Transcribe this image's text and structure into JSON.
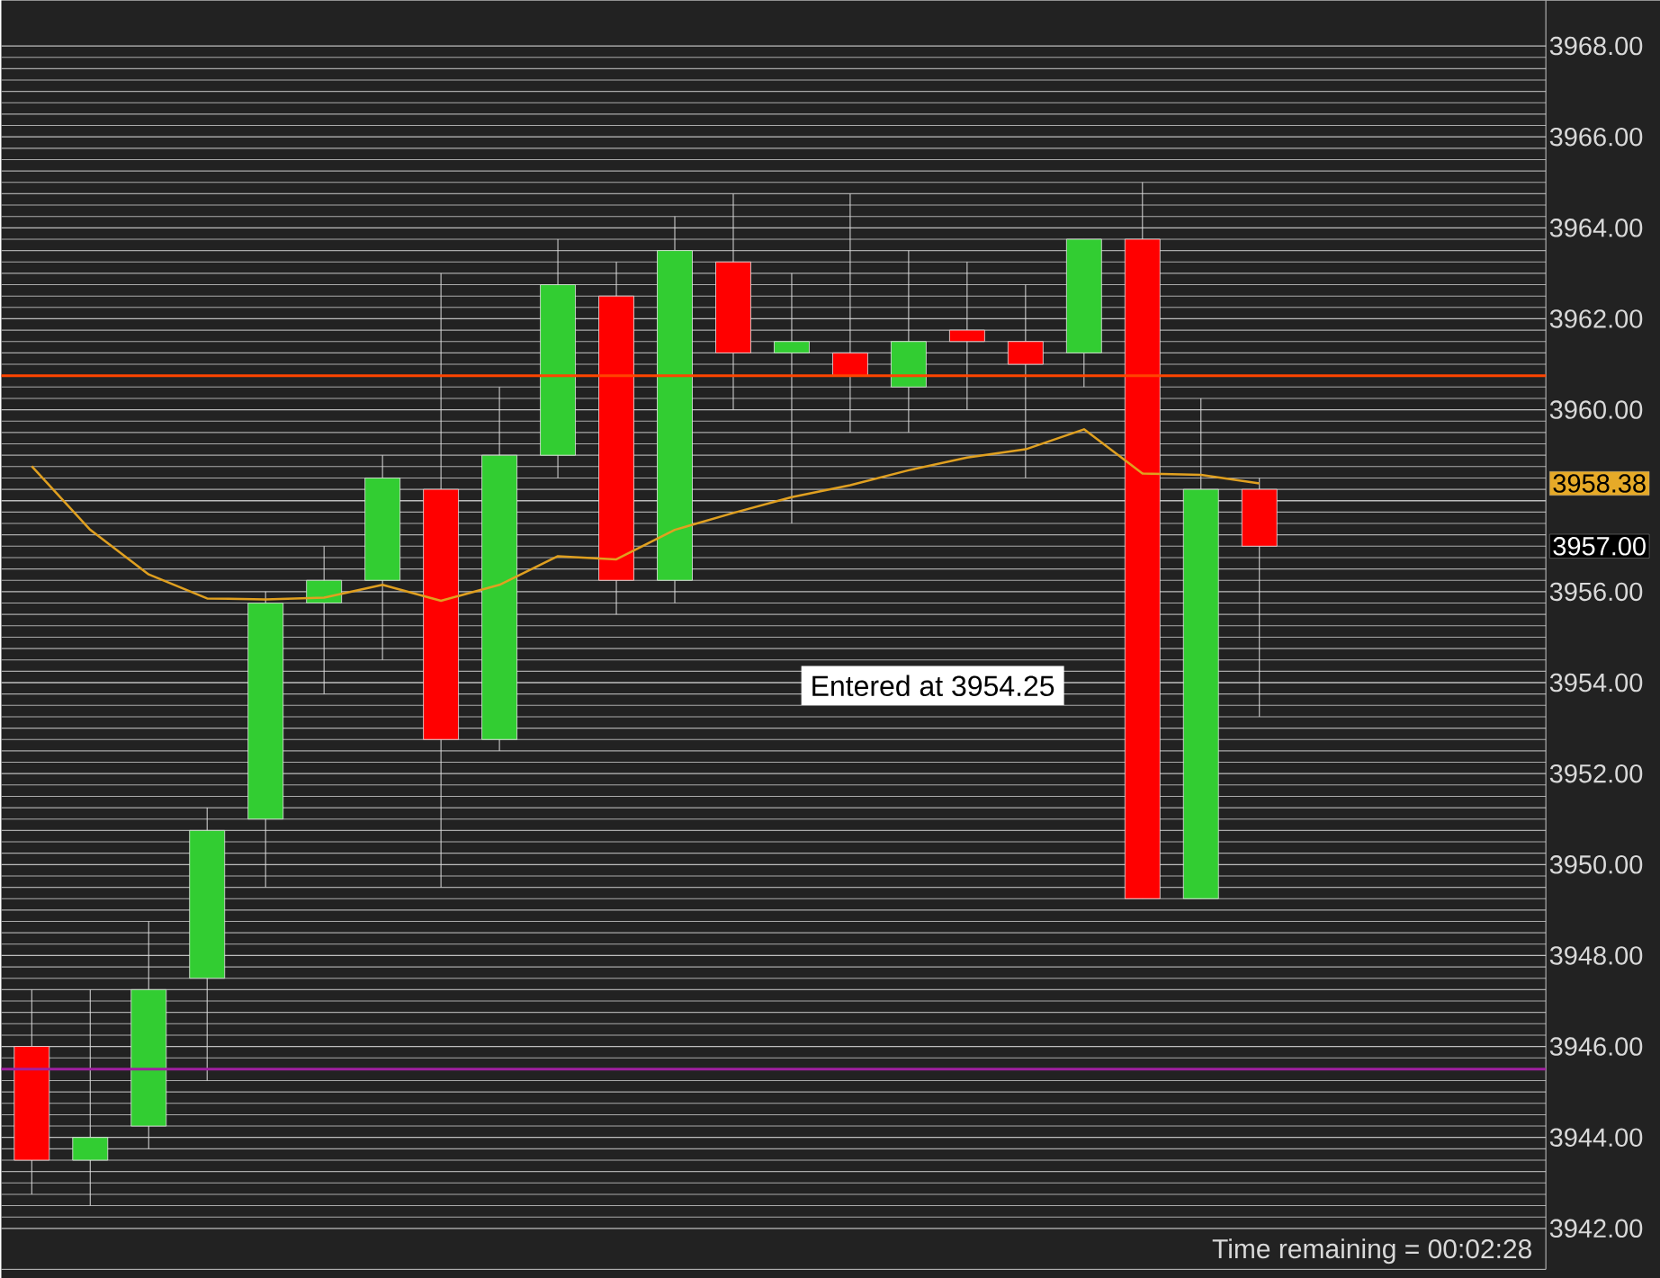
{
  "chart_data": {
    "type": "candlestick",
    "categories": [
      null,
      null,
      null,
      null,
      null,
      null,
      null,
      null,
      null,
      null,
      null,
      null,
      null,
      null,
      null,
      null,
      null,
      null,
      null,
      null,
      null,
      null
    ],
    "ohlc": [
      [
        3946.0,
        3947.25,
        3942.75,
        3943.5
      ],
      [
        3943.5,
        3947.25,
        3942.5,
        3944.0
      ],
      [
        3944.25,
        3948.75,
        3943.75,
        3947.25
      ],
      [
        3947.5,
        3951.25,
        3945.25,
        3950.75
      ],
      [
        3951.0,
        3956.0,
        3949.5,
        3955.75
      ],
      [
        3955.75,
        3957.0,
        3953.75,
        3956.25
      ],
      [
        3956.25,
        3959.0,
        3954.5,
        3958.5
      ],
      [
        3958.25,
        3963.0,
        3949.5,
        3952.75
      ],
      [
        3952.75,
        3960.5,
        3952.5,
        3959.0
      ],
      [
        3959.0,
        3963.75,
        3958.5,
        3962.75
      ],
      [
        3962.5,
        3963.25,
        3955.5,
        3956.25
      ],
      [
        3956.25,
        3964.25,
        3955.75,
        3963.5
      ],
      [
        3963.25,
        3964.75,
        3960.0,
        3961.25
      ],
      [
        3961.25,
        3963.0,
        3957.5,
        3961.5
      ],
      [
        3961.25,
        3964.75,
        3959.5,
        3960.75
      ],
      [
        3960.5,
        3963.5,
        3959.5,
        3961.5
      ],
      [
        3961.75,
        3963.25,
        3960.0,
        3961.5
      ],
      [
        3961.5,
        3962.75,
        3958.5,
        3961.0
      ],
      [
        3961.25,
        3963.75,
        3960.5,
        3963.75
      ],
      [
        3963.75,
        3965.0,
        3949.25,
        3949.25
      ],
      [
        3949.25,
        3960.25,
        3949.25,
        3958.25
      ],
      [
        3958.25,
        3958.5,
        3953.25,
        3957.0
      ]
    ],
    "colors": [
      "#ff0000",
      "#32cd32",
      "#32cd32",
      "#32cd32",
      "#32cd32",
      "#32cd32",
      "#32cd32",
      "#ff0000",
      "#32cd32",
      "#32cd32",
      "#ff0000",
      "#32cd32",
      "#ff0000",
      "#32cd32",
      "#ff0000",
      "#32cd32",
      "#ff0000",
      "#ff0000",
      "#32cd32",
      "#ff0000",
      "#32cd32",
      "#ff0000"
    ],
    "series": [
      {
        "type": "line",
        "color": "#e0a020",
        "values": [
          3958.76,
          3957.36,
          3956.38,
          3955.85,
          3955.83,
          3955.87,
          3956.15,
          3955.8,
          3956.15,
          3956.78,
          3956.71,
          3957.36,
          3957.73,
          3958.08,
          3958.34,
          3958.67,
          3958.95,
          3959.13,
          3959.57,
          3958.6,
          3958.57,
          3958.38
        ]
      }
    ],
    "ylim": [
      3941.1,
      3969.0
    ],
    "yticks": [
      {
        "value": 3942,
        "label": "3942.00"
      },
      {
        "value": 3944,
        "label": "3944.00"
      },
      {
        "value": 3946,
        "label": "3946.00"
      },
      {
        "value": 3948,
        "label": "3948.00"
      },
      {
        "value": 3950,
        "label": "3950.00"
      },
      {
        "value": 3952,
        "label": "3952.00"
      },
      {
        "value": 3954,
        "label": "3954.00"
      },
      {
        "value": 3956,
        "label": "3956.00"
      },
      {
        "value": 3958,
        "label": null
      },
      {
        "value": 3960,
        "label": "3960.00"
      },
      {
        "value": 3962,
        "label": "3962.00"
      },
      {
        "value": 3964,
        "label": "3964.00"
      },
      {
        "value": 3966,
        "label": "3966.00"
      },
      {
        "value": 3968,
        "label": "3968.00"
      }
    ],
    "grid": "y",
    "ref_lines": [
      {
        "axis": "y",
        "value": 3960.75,
        "color": "#ff4500"
      },
      {
        "axis": "y",
        "value": 3945.5,
        "color": "#a020a0"
      }
    ],
    "annotations": [
      "3958.38",
      "3957.00",
      "Entered at 3954.25",
      "Time remaining = 00:02:28"
    ]
  }
}
